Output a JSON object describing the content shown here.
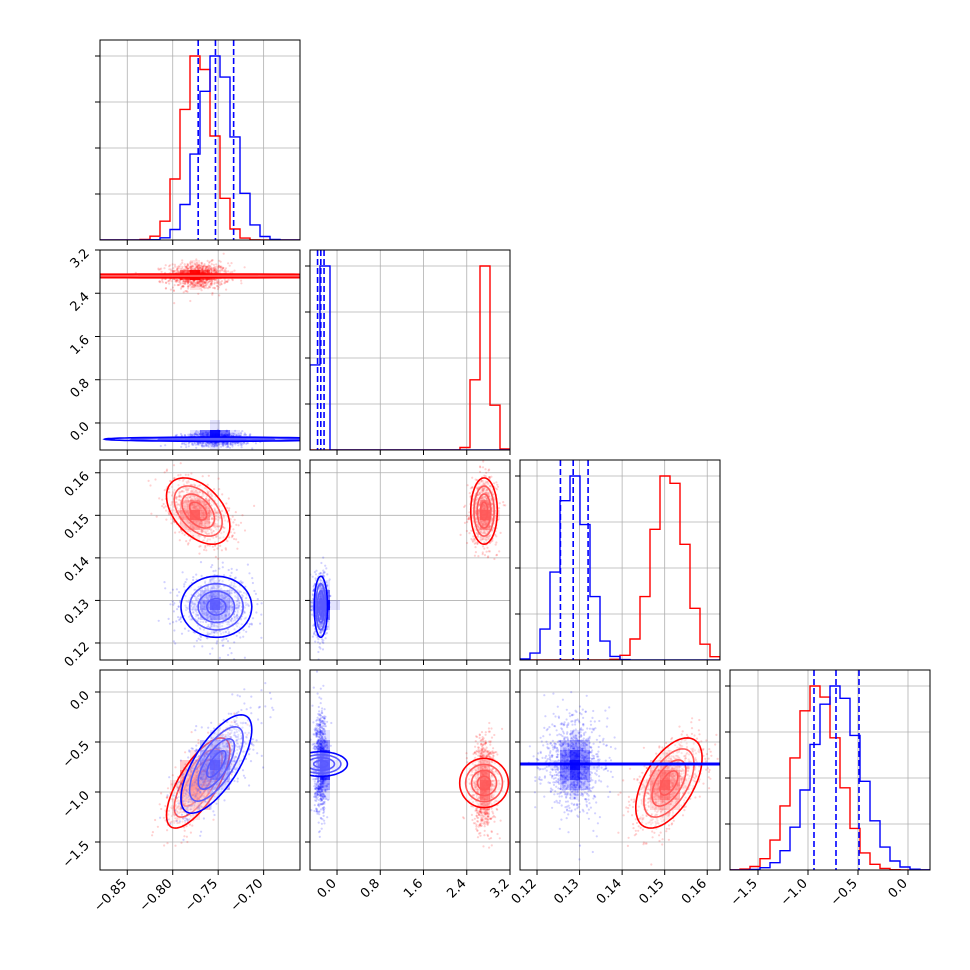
{
  "chart_data": {
    "type": "corner",
    "grid": true,
    "parameters": [
      {
        "id": "p1",
        "range": [
          -0.88,
          -0.66
        ],
        "ticks": [
          -0.85,
          -0.8,
          -0.75,
          -0.7
        ],
        "tick_labels": [
          "−0.85",
          "−0.80",
          "−0.75",
          "−0.70"
        ]
      },
      {
        "id": "p2",
        "range": [
          -0.5,
          3.2
        ],
        "ticks": [
          0.0,
          0.8,
          1.6,
          2.4,
          3.2
        ],
        "tick_labels": [
          "0.0",
          "0.8",
          "1.6",
          "2.4",
          "3.2"
        ]
      },
      {
        "id": "p3",
        "range": [
          0.116,
          0.163
        ],
        "ticks": [
          0.12,
          0.13,
          0.14,
          0.15,
          0.16
        ],
        "tick_labels": [
          "0.12",
          "0.13",
          "0.14",
          "0.15",
          "0.16"
        ]
      },
      {
        "id": "p4",
        "range": [
          -1.78,
          0.22
        ],
        "ticks": [
          -1.5,
          -1.0,
          -0.5,
          0.0
        ],
        "tick_labels": [
          "−1.5",
          "−1.0",
          "−0.5",
          "0.0"
        ]
      }
    ],
    "series": [
      {
        "color": "#ff0000",
        "mean": [
          -0.772,
          2.72,
          0.151,
          -0.91
        ],
        "std": [
          0.017,
          0.12,
          0.0038,
          0.22
        ],
        "correlations": {
          "0-2": -0.45,
          "0-3": 0.72,
          "2-3": 0.55
        }
      },
      {
        "color": "#0000ff",
        "mean": [
          -0.752,
          -0.3,
          0.1285,
          -0.72
        ],
        "std": [
          0.019,
          0.06,
          0.0035,
          0.24
        ],
        "correlations": {
          "0-2": 0.0,
          "0-3": 0.7,
          "2-3": 0.0
        },
        "quantiles": {
          "p1": [
            -0.772,
            -0.753,
            -0.733
          ],
          "p2": [
            -0.36,
            -0.3,
            -0.24
          ],
          "p3": [
            0.1255,
            0.1285,
            0.132
          ],
          "p4": [
            -0.94,
            -0.72,
            -0.49
          ]
        }
      }
    ]
  }
}
